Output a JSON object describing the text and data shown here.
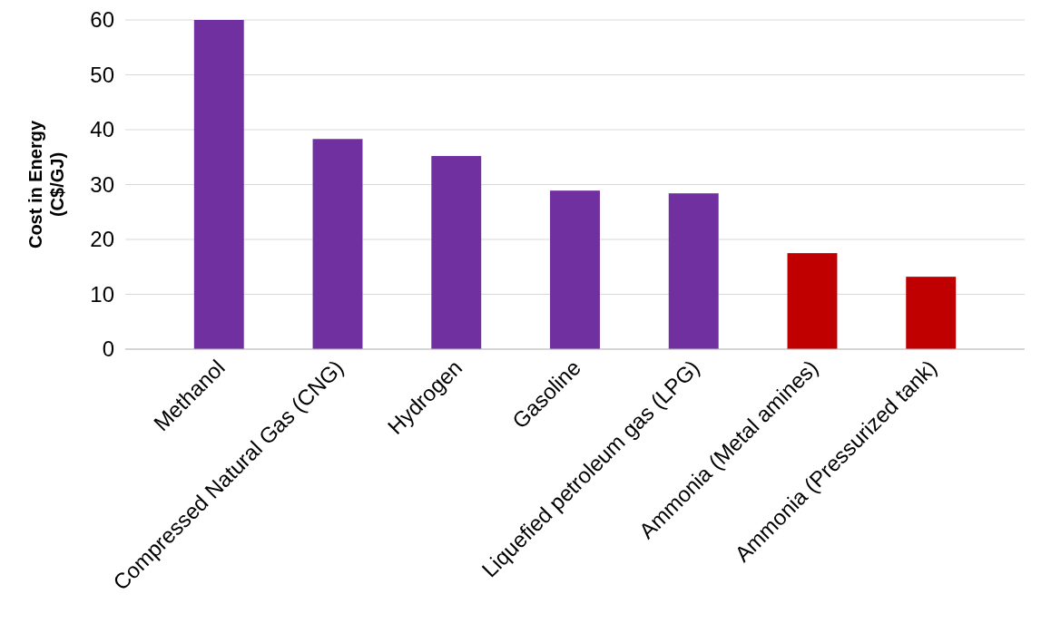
{
  "chart_data": {
    "type": "bar",
    "ylabel": "Cost in Energy (C$/GJ)",
    "categories": [
      "Methanol",
      "Compressed Natural Gas (CNG)",
      "Hydrogen",
      "Gasoline",
      "Liquefied petroleum gas (LPG)",
      "Ammonia (Metal amines)",
      "Ammonia (Pressurized tank)"
    ],
    "values": [
      60,
      38.3,
      35.2,
      28.9,
      28.4,
      17.5,
      13.2
    ],
    "colors": [
      "#7030a0",
      "#7030a0",
      "#7030a0",
      "#7030a0",
      "#7030a0",
      "#c00000",
      "#c00000"
    ],
    "ylim": [
      0,
      60
    ],
    "yticks": [
      0,
      10,
      20,
      30,
      40,
      50,
      60
    ],
    "grid": "y"
  }
}
